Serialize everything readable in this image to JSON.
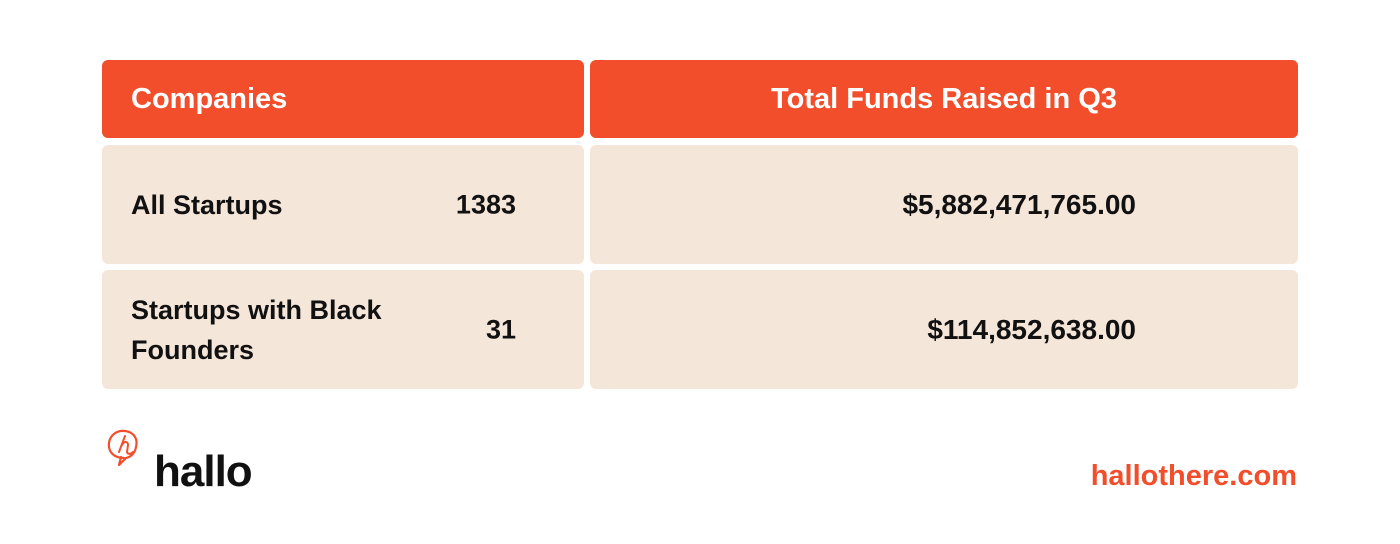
{
  "colors": {
    "header_bg": "#f24e2b",
    "row_bg": "#f5e6da",
    "accent": "#f24e2b",
    "text": "#111111"
  },
  "chart_data": {
    "type": "table",
    "columns": [
      "Companies",
      "Total Funds Raised in Q3"
    ],
    "rows": [
      {
        "label": "All Startups",
        "count": "1383",
        "funds": "$5,882,471,765.00"
      },
      {
        "label": "Startups with Black Founders",
        "count": "31",
        "funds": "$114,852,638.00"
      }
    ]
  },
  "footer": {
    "brand": "hallo",
    "logo_icon": "speech-bubble-h-icon",
    "website": "hallothere.com"
  }
}
